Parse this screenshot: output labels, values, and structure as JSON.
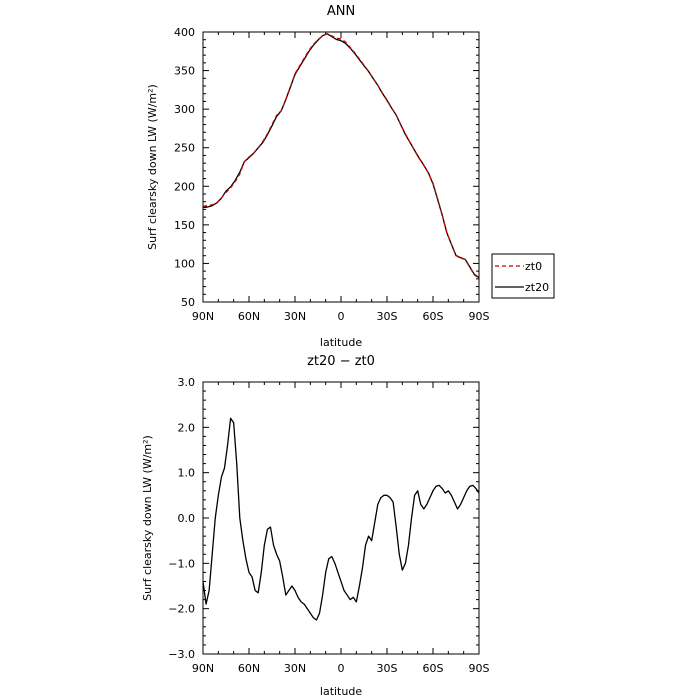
{
  "chart_data": [
    {
      "type": "line",
      "title": "ANN",
      "xlabel": "latitude",
      "ylabel": "Surf clearsky down LW (W/m²)",
      "xlim": [
        90,
        -90
      ],
      "ylim": [
        50,
        400
      ],
      "x_ticks": [
        90,
        60,
        30,
        0,
        -30,
        -60,
        -90
      ],
      "x_tick_labels": [
        "90N",
        "60N",
        "30N",
        "0",
        "30S",
        "60S",
        "90S"
      ],
      "y_ticks": [
        50,
        100,
        150,
        200,
        250,
        300,
        350,
        400
      ],
      "y_tick_labels": [
        "50",
        "100",
        "150",
        "200",
        "250",
        "300",
        "350",
        "400"
      ],
      "legend_position": "right",
      "series": [
        {
          "name": "zt0",
          "color": "#cc0000",
          "dash": "dashed",
          "x": [
            90,
            87,
            84,
            81,
            78,
            75,
            72,
            69,
            66,
            63,
            60,
            57,
            54,
            51,
            48,
            45,
            42,
            39,
            36,
            33,
            30,
            27,
            24,
            21,
            18,
            15,
            12,
            9,
            6,
            3,
            0,
            -3,
            -6,
            -9,
            -12,
            -15,
            -18,
            -21,
            -24,
            -27,
            -30,
            -33,
            -36,
            -39,
            -42,
            -45,
            -48,
            -51,
            -54,
            -57,
            -60,
            -63,
            -66,
            -69,
            -72,
            -75,
            -78,
            -81,
            -84,
            -87,
            -90
          ],
          "y": [
            174,
            175,
            176,
            178,
            185,
            192,
            198,
            206,
            216,
            232,
            238,
            243,
            250,
            258,
            268,
            280,
            292,
            298,
            312,
            328,
            346,
            356,
            366,
            376,
            384,
            390,
            395,
            398,
            395,
            392,
            391,
            387,
            380,
            373,
            365,
            357,
            349,
            340,
            331,
            321,
            312,
            302,
            292,
            280,
            268,
            257,
            246,
            236,
            227,
            217,
            204,
            184,
            163,
            140,
            125,
            110,
            107,
            105,
            95,
            85,
            81
          ]
        },
        {
          "name": "zt20",
          "color": "#000000",
          "dash": "solid",
          "x": [
            90,
            87,
            84,
            81,
            78,
            75,
            72,
            69,
            66,
            63,
            60,
            57,
            54,
            51,
            48,
            45,
            42,
            39,
            36,
            33,
            30,
            27,
            24,
            21,
            18,
            15,
            12,
            9,
            6,
            3,
            0,
            -3,
            -6,
            -9,
            -12,
            -15,
            -18,
            -21,
            -24,
            -27,
            -30,
            -33,
            -36,
            -39,
            -42,
            -45,
            -48,
            -51,
            -54,
            -57,
            -60,
            -63,
            -66,
            -69,
            -72,
            -75,
            -78,
            -81,
            -84,
            -87,
            -90
          ],
          "y": [
            172.6,
            173.1,
            174.8,
            178.5,
            184.6,
            193.8,
            199.2,
            207.7,
            218.2,
            232.0,
            237.2,
            242.8,
            249.9,
            256.8,
            266.8,
            278.4,
            290.5,
            297.8,
            312.5,
            328.7,
            345.1,
            354.9,
            364.7,
            374.7,
            382.8,
            389.6,
            395.2,
            397.6,
            394.0,
            390.3,
            388.8,
            385.1,
            379.1,
            372.1,
            364.1,
            356.3,
            348.8,
            339.6,
            330.9,
            320.6,
            311.3,
            301.4,
            292.3,
            279.6,
            267.0,
            256.9,
            246.6,
            236.5,
            227.4,
            217.5,
            203.2,
            183.0,
            162.8,
            139.9,
            124.8,
            110.3,
            107.4,
            105.3,
            95.5,
            85.7,
            81.7
          ]
        }
      ]
    },
    {
      "type": "line",
      "title": "zt20 − zt0",
      "xlabel": "latitude",
      "ylabel": "Surf clearsky down LW (W/m²)",
      "xlim": [
        90,
        -90
      ],
      "ylim": [
        -3.0,
        3.0
      ],
      "x_ticks": [
        90,
        60,
        30,
        0,
        -30,
        -60,
        -90
      ],
      "x_tick_labels": [
        "90N",
        "60N",
        "30N",
        "0",
        "30S",
        "60S",
        "90S"
      ],
      "y_ticks": [
        -3.0,
        -2.0,
        -1.0,
        0.0,
        1.0,
        2.0,
        3.0
      ],
      "y_tick_labels": [
        "−3.0",
        "−2.0",
        "−1.0",
        "0.0",
        "1.0",
        "2.0",
        "3.0"
      ],
      "series": [
        {
          "color": "#000000",
          "dash": "solid",
          "x": [
            90,
            88,
            86,
            84,
            82,
            80,
            78,
            76,
            74,
            72,
            70,
            68,
            66,
            64,
            62,
            60,
            58,
            56,
            54,
            52,
            50,
            48,
            46,
            44,
            42,
            40,
            38,
            36,
            34,
            32,
            30,
            28,
            26,
            24,
            22,
            20,
            18,
            16,
            14,
            12,
            10,
            8,
            6,
            4,
            2,
            0,
            -2,
            -4,
            -6,
            -8,
            -10,
            -12,
            -14,
            -16,
            -18,
            -20,
            -22,
            -24,
            -26,
            -28,
            -30,
            -32,
            -34,
            -36,
            -38,
            -40,
            -42,
            -44,
            -46,
            -48,
            -50,
            -52,
            -54,
            -56,
            -58,
            -60,
            -62,
            -64,
            -66,
            -68,
            -70,
            -72,
            -74,
            -76,
            -78,
            -80,
            -82,
            -84,
            -86,
            -88,
            -90
          ],
          "y": [
            -1.4,
            -1.9,
            -1.6,
            -0.8,
            0.0,
            0.5,
            0.9,
            1.1,
            1.6,
            2.2,
            2.1,
            1.2,
            0.0,
            -0.5,
            -0.9,
            -1.2,
            -1.3,
            -1.6,
            -1.65,
            -1.2,
            -0.6,
            -0.25,
            -0.2,
            -0.6,
            -0.8,
            -0.95,
            -1.3,
            -1.7,
            -1.6,
            -1.5,
            -1.6,
            -1.75,
            -1.85,
            -1.9,
            -2.0,
            -2.1,
            -2.2,
            -2.25,
            -2.1,
            -1.7,
            -1.2,
            -0.9,
            -0.85,
            -1.0,
            -1.2,
            -1.4,
            -1.6,
            -1.7,
            -1.8,
            -1.75,
            -1.85,
            -1.5,
            -1.1,
            -0.6,
            -0.4,
            -0.5,
            -0.1,
            0.3,
            0.45,
            0.5,
            0.5,
            0.45,
            0.35,
            -0.2,
            -0.8,
            -1.15,
            -1.0,
            -0.6,
            0.0,
            0.5,
            0.6,
            0.3,
            0.2,
            0.3,
            0.45,
            0.6,
            0.7,
            0.72,
            0.65,
            0.55,
            0.6,
            0.5,
            0.35,
            0.2,
            0.3,
            0.45,
            0.6,
            0.7,
            0.72,
            0.65,
            0.55
          ]
        }
      ]
    }
  ]
}
